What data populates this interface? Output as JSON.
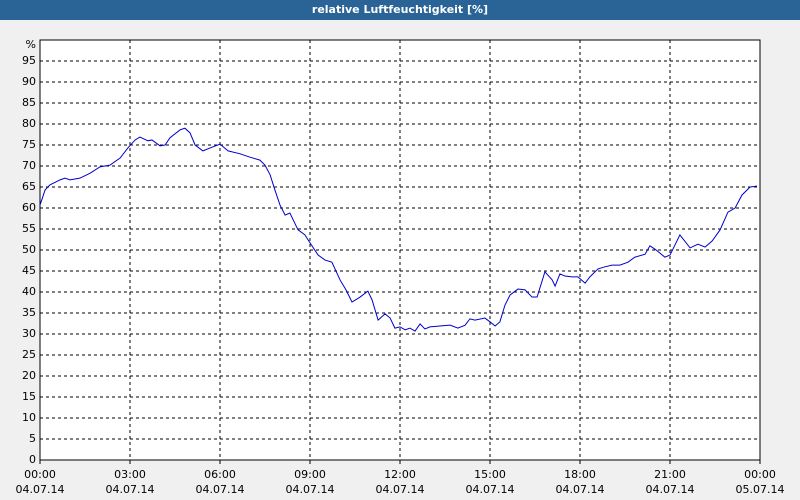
{
  "chart_data": {
    "type": "line",
    "title": "relative Luftfeuchtigkeit [%]",
    "y_label": "%",
    "xlim": [
      0,
      24
    ],
    "ylim": [
      0,
      100
    ],
    "xticks": [
      {
        "value": 0,
        "label": "00:00",
        "date": "04.07.14"
      },
      {
        "value": 3,
        "label": "03:00",
        "date": "04.07.14"
      },
      {
        "value": 6,
        "label": "06:00",
        "date": "04.07.14"
      },
      {
        "value": 9,
        "label": "09:00",
        "date": "04.07.14"
      },
      {
        "value": 12,
        "label": "12:00",
        "date": "04.07.14"
      },
      {
        "value": 15,
        "label": "15:00",
        "date": "04.07.14"
      },
      {
        "value": 18,
        "label": "18:00",
        "date": "04.07.14"
      },
      {
        "value": 21,
        "label": "21:00",
        "date": "04.07.14"
      },
      {
        "value": 24,
        "label": "00:00",
        "date": "05.07.14"
      }
    ],
    "yticks": [
      0,
      5,
      10,
      15,
      20,
      25,
      30,
      35,
      40,
      45,
      50,
      55,
      60,
      65,
      70,
      75,
      80,
      85,
      90,
      95
    ],
    "grid": true,
    "color": "#0000cc",
    "x": [
      0,
      0.17,
      0.33,
      0.67,
      0.83,
      1,
      1.33,
      1.67,
      2,
      2.33,
      2.67,
      2.93,
      3.17,
      3.33,
      3.6,
      3.73,
      4,
      4.17,
      4.33,
      4.67,
      4.83,
      5,
      5.17,
      5.43,
      5.67,
      6,
      6.27,
      6.67,
      7,
      7.33,
      7.5,
      7.67,
      7.83,
      8,
      8.17,
      8.33,
      8.6,
      8.83,
      9,
      9.27,
      9.5,
      9.73,
      10,
      10.2,
      10.4,
      10.67,
      10.93,
      11.07,
      11.27,
      11.5,
      11.67,
      11.83,
      12,
      12.17,
      12.33,
      12.5,
      12.67,
      12.83,
      13,
      13.33,
      13.67,
      13.93,
      14.17,
      14.33,
      14.5,
      14.83,
      15,
      15.17,
      15.33,
      15.5,
      15.67,
      15.93,
      16.17,
      16.4,
      16.57,
      16.83,
      17.07,
      17.17,
      17.33,
      17.5,
      17.73,
      17.93,
      18.17,
      18.33,
      18.6,
      18.83,
      19.07,
      19.33,
      19.6,
      19.83,
      20.17,
      20.33,
      20.5,
      20.83,
      21,
      21.33,
      21.67,
      21.93,
      22.17,
      22.4,
      22.67,
      22.93,
      23.17,
      23.4,
      23.67,
      23.9
    ],
    "values": [
      60.7,
      64.3,
      65.5,
      66.7,
      67.1,
      66.7,
      67.1,
      68.3,
      69.8,
      70.2,
      71.9,
      74.3,
      76.2,
      76.9,
      76,
      76.2,
      74.8,
      75,
      76.7,
      78.6,
      79,
      77.9,
      75,
      73.6,
      74.3,
      75.2,
      73.6,
      72.9,
      72.1,
      71.4,
      70.2,
      67.9,
      64.3,
      60.7,
      58.3,
      58.8,
      54.8,
      53.6,
      51.7,
      48.8,
      47.6,
      47.1,
      42.9,
      40.5,
      37.6,
      38.8,
      40.2,
      38.1,
      33.3,
      34.8,
      33.8,
      31.4,
      31.7,
      31,
      31.4,
      30.7,
      32.4,
      31.2,
      31.7,
      31.9,
      32.1,
      31.4,
      32.1,
      33.6,
      33.3,
      33.8,
      32.9,
      31.9,
      32.9,
      36.9,
      39.3,
      40.7,
      40.5,
      38.8,
      38.8,
      44.8,
      42.9,
      41.4,
      44.3,
      43.8,
      43.6,
      43.6,
      42.1,
      43.6,
      45.5,
      46,
      46.4,
      46.4,
      47.1,
      48.3,
      49,
      51,
      50.2,
      48.3,
      48.8,
      53.6,
      50.5,
      51.4,
      50.7,
      52.1,
      54.8,
      59,
      60,
      63.1,
      65,
      65.2
    ]
  }
}
